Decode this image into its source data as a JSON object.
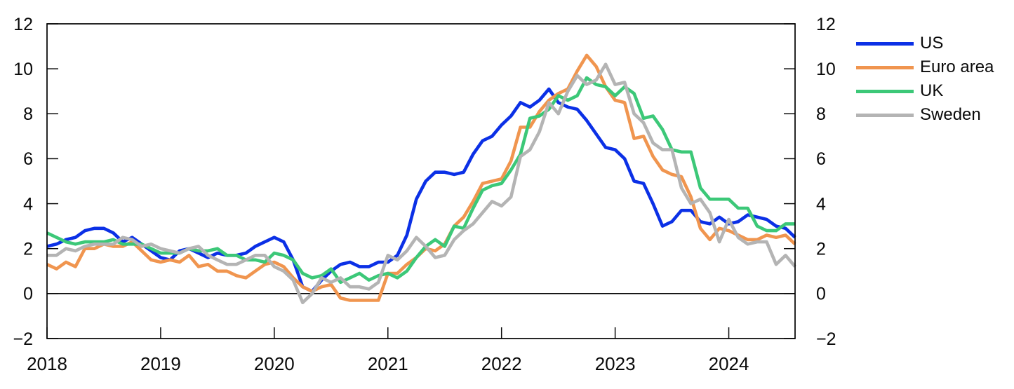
{
  "page": {
    "background": "#ffffff"
  },
  "chart_data": {
    "type": "line",
    "title": "",
    "xlabel": "",
    "ylabel": "",
    "frequency": "monthly",
    "x_start": "2018-01",
    "x_end": "2024-08",
    "ylim": [
      -2,
      12
    ],
    "grid": false,
    "zero_line": true,
    "y_axis_sides": [
      "left",
      "right"
    ],
    "legend_position": "top-right-outside",
    "axis_color": "#0a0a0a",
    "ytick_values": [
      12,
      10,
      8,
      6,
      4,
      2,
      0,
      -2
    ],
    "ytick_labels": [
      "12",
      "10",
      "8",
      "6",
      "4",
      "2",
      "0",
      "−2"
    ],
    "xtick_labels": [
      "2018",
      "2019",
      "2020",
      "2021",
      "2022",
      "2023",
      "2024"
    ],
    "series": [
      {
        "name": "US",
        "color": "#0B30E6",
        "values": [
          2.1,
          2.2,
          2.4,
          2.5,
          2.8,
          2.9,
          2.9,
          2.7,
          2.3,
          2.5,
          2.2,
          1.9,
          1.6,
          1.5,
          1.9,
          2.0,
          1.8,
          1.6,
          1.8,
          1.7,
          1.7,
          1.8,
          2.1,
          2.3,
          2.5,
          2.3,
          1.5,
          0.3,
          0.1,
          0.6,
          1.0,
          1.3,
          1.4,
          1.2,
          1.2,
          1.4,
          1.4,
          1.7,
          2.6,
          4.2,
          5.0,
          5.4,
          5.4,
          5.3,
          5.4,
          6.2,
          6.8,
          7.0,
          7.5,
          7.9,
          8.5,
          8.3,
          8.6,
          9.1,
          8.5,
          8.3,
          8.2,
          7.7,
          7.1,
          6.5,
          6.4,
          6.0,
          5.0,
          4.9,
          4.0,
          3.0,
          3.2,
          3.7,
          3.7,
          3.2,
          3.1,
          3.4,
          3.1,
          3.2,
          3.5,
          3.4,
          3.3,
          3.0,
          2.9,
          2.5
        ]
      },
      {
        "name": "Euro area",
        "color": "#F0954F",
        "values": [
          1.3,
          1.1,
          1.4,
          1.2,
          2.0,
          2.0,
          2.2,
          2.1,
          2.1,
          2.3,
          1.9,
          1.5,
          1.4,
          1.5,
          1.4,
          1.7,
          1.2,
          1.3,
          1.0,
          1.0,
          0.8,
          0.7,
          1.0,
          1.3,
          1.4,
          1.2,
          0.7,
          0.3,
          0.1,
          0.3,
          0.4,
          -0.2,
          -0.3,
          -0.3,
          -0.3,
          -0.3,
          0.9,
          0.9,
          1.3,
          1.6,
          2.0,
          1.9,
          2.2,
          3.0,
          3.4,
          4.1,
          4.9,
          5.0,
          5.1,
          5.9,
          7.4,
          7.4,
          8.1,
          8.6,
          8.9,
          9.1,
          9.9,
          10.6,
          10.1,
          9.2,
          8.6,
          8.5,
          6.9,
          7.0,
          6.1,
          5.5,
          5.3,
          5.2,
          4.3,
          2.9,
          2.4,
          2.9,
          2.8,
          2.6,
          2.4,
          2.4,
          2.6,
          2.5,
          2.6,
          2.2
        ]
      },
      {
        "name": "UK",
        "color": "#3CC878",
        "values": [
          2.7,
          2.5,
          2.3,
          2.2,
          2.3,
          2.3,
          2.3,
          2.4,
          2.2,
          2.2,
          2.2,
          2.0,
          1.8,
          1.8,
          1.8,
          2.0,
          1.9,
          1.9,
          2.0,
          1.7,
          1.7,
          1.5,
          1.5,
          1.4,
          1.8,
          1.7,
          1.5,
          0.9,
          0.7,
          0.8,
          1.1,
          0.5,
          0.7,
          0.9,
          0.6,
          0.8,
          0.9,
          0.7,
          1.0,
          1.6,
          2.1,
          2.4,
          2.1,
          3.0,
          2.9,
          3.8,
          4.6,
          4.8,
          4.9,
          5.5,
          6.2,
          7.8,
          7.9,
          8.2,
          8.8,
          8.6,
          8.8,
          9.6,
          9.3,
          9.2,
          8.8,
          9.2,
          8.9,
          7.8,
          7.9,
          7.3,
          6.4,
          6.3,
          6.3,
          4.7,
          4.2,
          4.2,
          4.2,
          3.8,
          3.8,
          3.0,
          2.8,
          2.8,
          3.1,
          3.1
        ]
      },
      {
        "name": "Sweden",
        "color": "#B4B4B4",
        "values": [
          1.7,
          1.7,
          2.0,
          1.9,
          2.1,
          2.2,
          2.2,
          2.2,
          2.5,
          2.4,
          2.1,
          2.2,
          2.0,
          1.9,
          1.8,
          2.0,
          2.1,
          1.7,
          1.5,
          1.3,
          1.3,
          1.5,
          1.7,
          1.7,
          1.2,
          1.0,
          0.6,
          -0.4,
          0.0,
          0.7,
          0.5,
          0.7,
          0.3,
          0.3,
          0.2,
          0.5,
          1.7,
          1.5,
          1.9,
          2.5,
          2.1,
          1.6,
          1.7,
          2.4,
          2.8,
          3.1,
          3.6,
          4.1,
          3.9,
          4.3,
          6.1,
          6.4,
          7.2,
          8.5,
          8.0,
          9.0,
          9.7,
          9.3,
          9.5,
          10.2,
          9.3,
          9.4,
          8.0,
          7.6,
          6.7,
          6.4,
          6.4,
          4.7,
          4.0,
          4.2,
          3.6,
          2.3,
          3.3,
          2.5,
          2.2,
          2.3,
          2.3,
          1.3,
          1.7,
          1.2
        ]
      }
    ]
  }
}
